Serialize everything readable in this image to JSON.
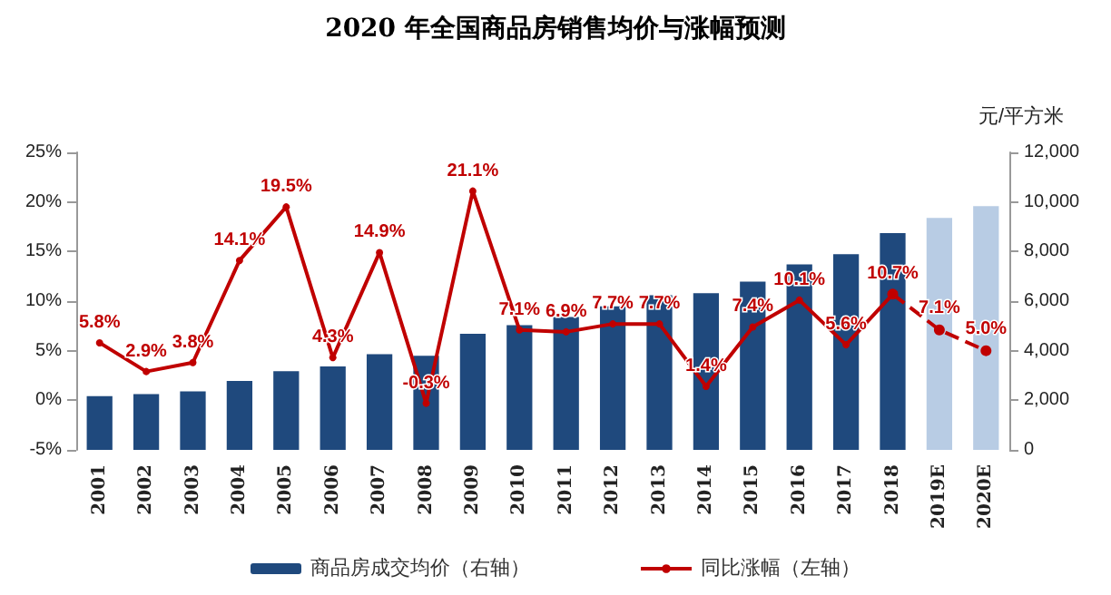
{
  "chart_data": {
    "type": "bar",
    "title": "2020 年全国商品房销售均价与涨幅预测",
    "y2label": "元/平方米",
    "categories": [
      "2001",
      "2002",
      "2003",
      "2004",
      "2005",
      "2006",
      "2007",
      "2008",
      "2009",
      "2010",
      "2011",
      "2012",
      "2013",
      "2014",
      "2015",
      "2016",
      "2017",
      "2018",
      "2019E",
      "2020E"
    ],
    "series": [
      {
        "name": "商品房成交均价（右轴）",
        "axis": "y2",
        "color": "#1f497d",
        "colors": [
          "#1f497d",
          "#1f497d",
          "#1f497d",
          "#1f497d",
          "#1f497d",
          "#1f497d",
          "#1f497d",
          "#1f497d",
          "#1f497d",
          "#1f497d",
          "#1f497d",
          "#1f497d",
          "#1f497d",
          "#1f497d",
          "#1f497d",
          "#1f497d",
          "#1f497d",
          "#1f497d",
          "#b8cce4",
          "#b8cce4"
        ],
        "values": [
          2170,
          2250,
          2360,
          2780,
          3170,
          3370,
          3860,
          3800,
          4680,
          5030,
          5360,
          5790,
          6240,
          6320,
          6790,
          7480,
          7890,
          8740,
          9360,
          9830
        ]
      },
      {
        "name": "同比涨幅（左轴）",
        "type": "line",
        "color": "#c00000",
        "line_style": "solid",
        "marker": "circle",
        "values": [
          5.8,
          2.9,
          3.8,
          14.1,
          19.5,
          4.3,
          14.9,
          -0.3,
          21.1,
          7.1,
          6.9,
          7.7,
          7.7,
          1.4,
          7.4,
          10.1,
          5.6,
          10.7,
          null,
          null
        ],
        "value_labels": [
          "5.8%",
          "2.9%",
          "3.8%",
          "14.1%",
          "19.5%",
          "4.3%",
          "14.9%",
          "-0.3%",
          "21.1%",
          "7.1%",
          "6.9%",
          "7.7%",
          "7.7%",
          "1.4%",
          "7.4%",
          "10.1%",
          "5.6%",
          "10.7%",
          null,
          null
        ]
      },
      {
        "type": "line",
        "color": "#c00000",
        "line_style": "dashed",
        "marker": "circle",
        "values": [
          null,
          null,
          null,
          null,
          null,
          null,
          null,
          null,
          null,
          null,
          null,
          null,
          null,
          null,
          null,
          null,
          null,
          10.7,
          7.1,
          5.0
        ],
        "value_labels": [
          null,
          null,
          null,
          null,
          null,
          null,
          null,
          null,
          null,
          null,
          null,
          null,
          null,
          null,
          null,
          null,
          null,
          null,
          "7.1%",
          "5.0%"
        ]
      }
    ],
    "ylim": [
      -5,
      25
    ],
    "yticks": [
      {
        "value": -5,
        "label": "-5%"
      },
      {
        "value": 0,
        "label": "0%"
      },
      {
        "value": 5,
        "label": "5%"
      },
      {
        "value": 10,
        "label": "10%"
      },
      {
        "value": 15,
        "label": "15%"
      },
      {
        "value": 20,
        "label": "20%"
      },
      {
        "value": 25,
        "label": "25%"
      }
    ],
    "y2lim": [
      0,
      12000
    ],
    "y2ticks": [
      0,
      {
        "value": 2000,
        "label": "2,000"
      },
      {
        "value": 4000,
        "label": "4,000"
      },
      {
        "value": 6000,
        "label": "6,000"
      },
      {
        "value": 8000,
        "label": "8,000"
      },
      {
        "value": 10000,
        "label": "10,000"
      },
      {
        "value": 12000,
        "label": "12,000"
      }
    ],
    "grid": false,
    "legend": "bottom"
  }
}
